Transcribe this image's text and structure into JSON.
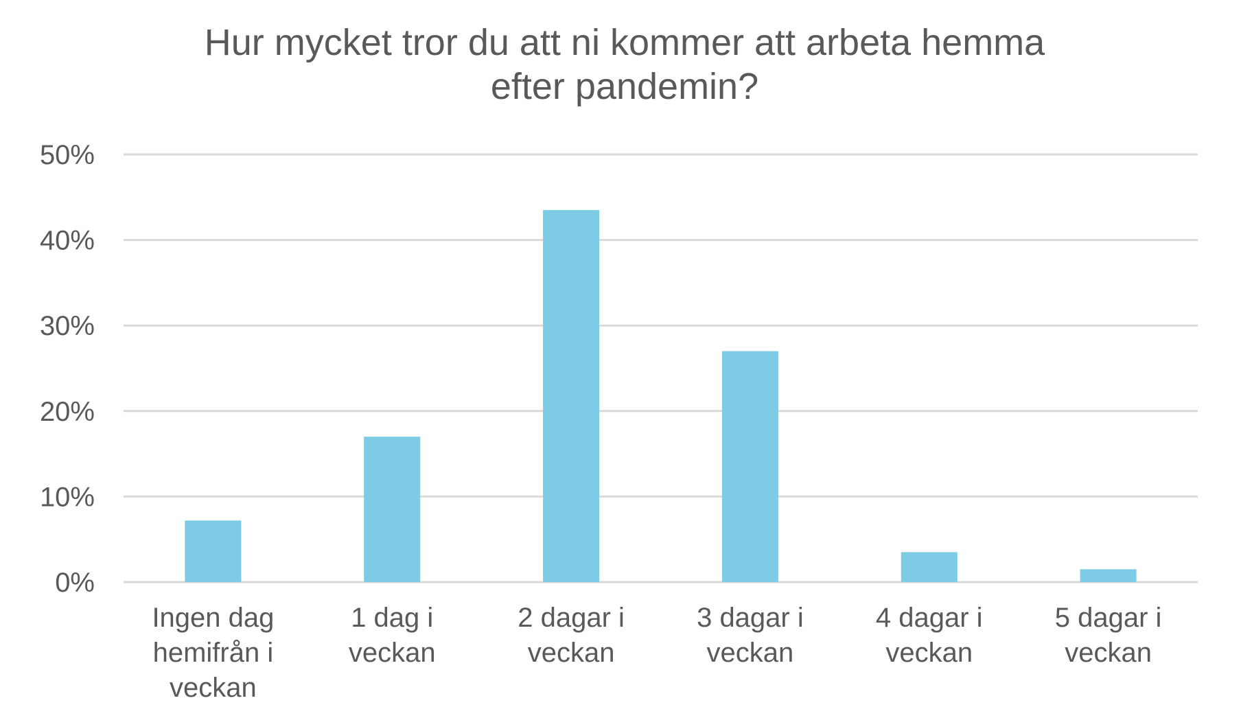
{
  "chart_data": {
    "type": "bar",
    "title_lines": [
      "Hur mycket tror du att ni kommer att arbeta hemma",
      "efter pandemin?"
    ],
    "categories": [
      [
        "Ingen dag",
        "hemifrån i",
        "veckan"
      ],
      [
        "1 dag i",
        "veckan"
      ],
      [
        "2 dagar i",
        "veckan"
      ],
      [
        "3 dagar i",
        "veckan"
      ],
      [
        "4 dagar i",
        "veckan"
      ],
      [
        "5 dagar i",
        "veckan"
      ]
    ],
    "values": [
      7.2,
      17.0,
      43.5,
      27.0,
      3.5,
      1.5
    ],
    "ylim": [
      0,
      50
    ],
    "yticks": [
      0,
      10,
      20,
      30,
      40,
      50
    ],
    "ytick_labels": [
      "0%",
      "10%",
      "20%",
      "30%",
      "40%",
      "50%"
    ],
    "grid": true,
    "bar_color": "#7ECBE6",
    "grid_color": "#D9D9D9"
  }
}
